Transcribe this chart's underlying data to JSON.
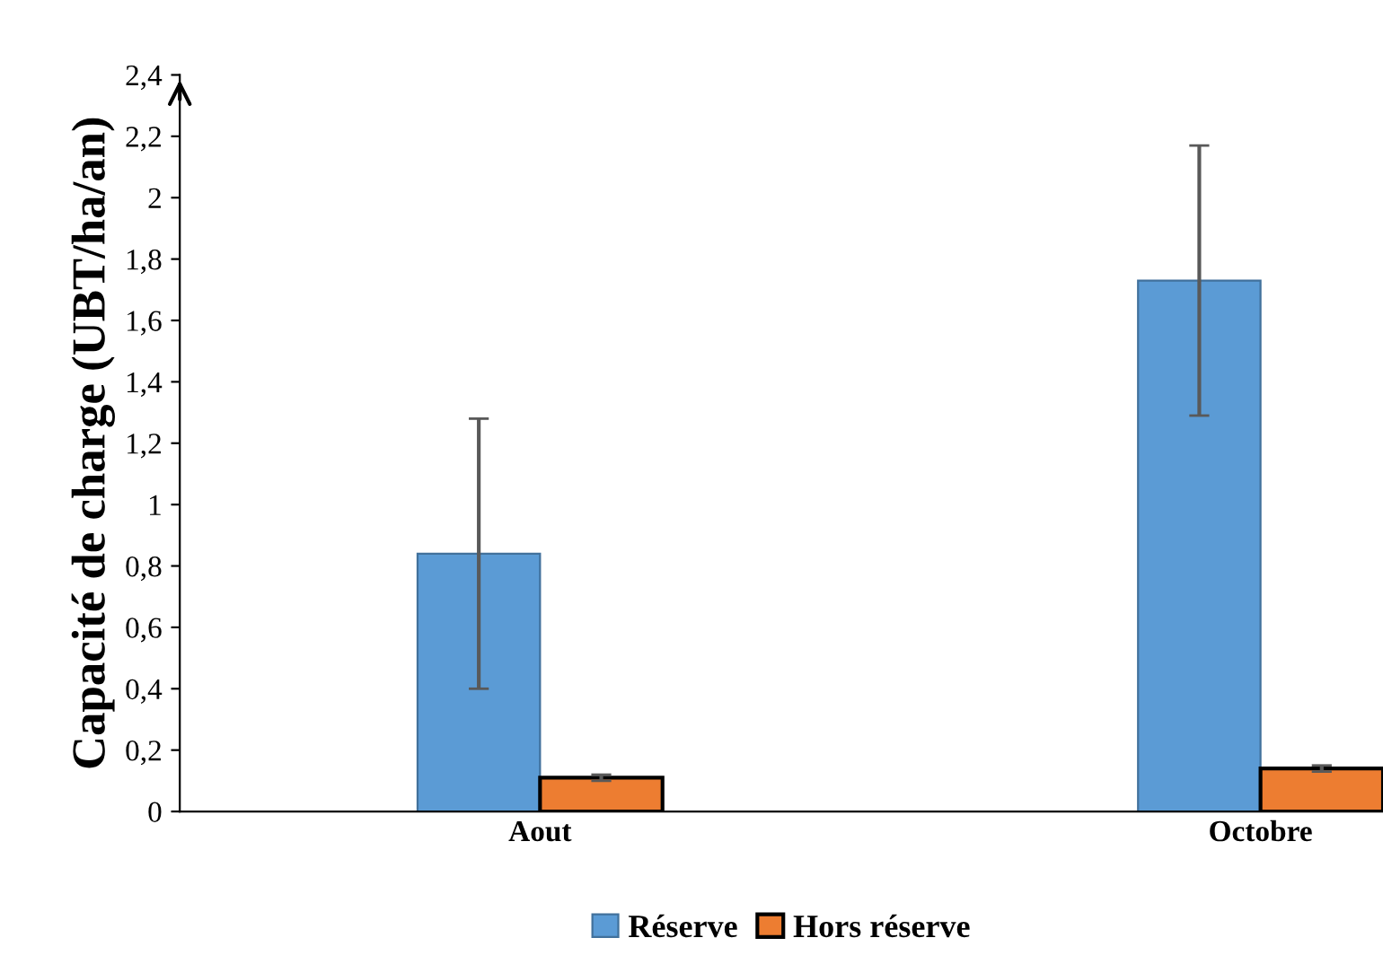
{
  "chart_data": {
    "type": "bar",
    "ylabel": "Capacité de charge (UBT/ha/an)",
    "categories": [
      "Aout",
      "Octobre"
    ],
    "series": [
      {
        "name": "Réserve",
        "color": "#5b9bd5",
        "values": [
          0.84,
          1.73
        ],
        "errors": [
          0.44,
          0.44
        ]
      },
      {
        "name": "Hors réserve",
        "color": "#ed7d31",
        "values": [
          0.11,
          0.14
        ],
        "errors": [
          0.01,
          0.01
        ]
      }
    ],
    "ylim": [
      0,
      2.4
    ],
    "yticks": [
      0,
      {
        "value": 0.2,
        "label": "0,2"
      },
      {
        "value": 0.4,
        "label": "0,4"
      },
      {
        "value": 0.6,
        "label": "0,6"
      },
      {
        "value": 0.8,
        "label": "0,8"
      },
      1,
      {
        "value": 1.2,
        "label": "1,2"
      },
      {
        "value": 1.4,
        "label": "1,4"
      },
      {
        "value": 1.6,
        "label": "1,6"
      },
      {
        "value": 1.8,
        "label": "1,8"
      },
      2,
      {
        "value": 2.2,
        "label": "2,2"
      },
      {
        "value": 2.4,
        "label": "2,4"
      }
    ],
    "grid": false,
    "legend": "bottom"
  }
}
